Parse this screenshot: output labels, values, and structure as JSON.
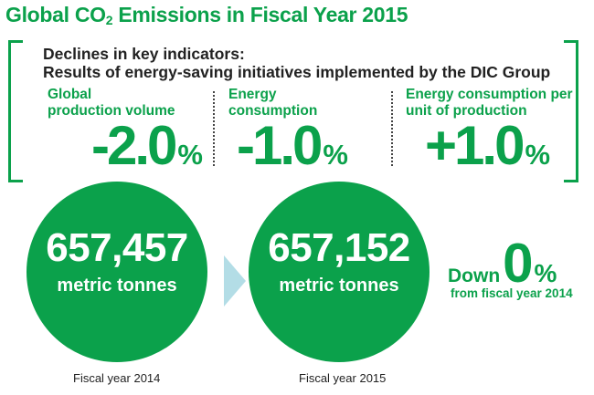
{
  "title": {
    "main": "Global CO",
    "sub": "2",
    "rest": " Emissions in Fiscal Year 2015"
  },
  "heading": {
    "line1": "Declines in key indicators:",
    "line2": "Results of energy-saving initiatives implemented by the DIC Group"
  },
  "indicators": [
    {
      "label_line1": "Global",
      "label_line2": "production volume",
      "value": "-2.0",
      "unit": "%"
    },
    {
      "label_line1": "Energy",
      "label_line2": "consumption",
      "value": "-1.0",
      "unit": "%"
    },
    {
      "label_line1": "Energy consumption per",
      "label_line2": "unit of production",
      "value": "+1.0",
      "unit": "%"
    }
  ],
  "emissions": [
    {
      "value": "657,457",
      "unit": "metric tonnes",
      "caption": "Fiscal year 2014"
    },
    {
      "value": "657,152",
      "unit": "metric tonnes",
      "caption": "Fiscal year 2015"
    }
  ],
  "change": {
    "word": "Down",
    "value": "0",
    "unit": "%",
    "sub": "from fiscal year 2014"
  },
  "colors": {
    "accent": "#0ba14b",
    "arrow": "#b3dde6"
  }
}
